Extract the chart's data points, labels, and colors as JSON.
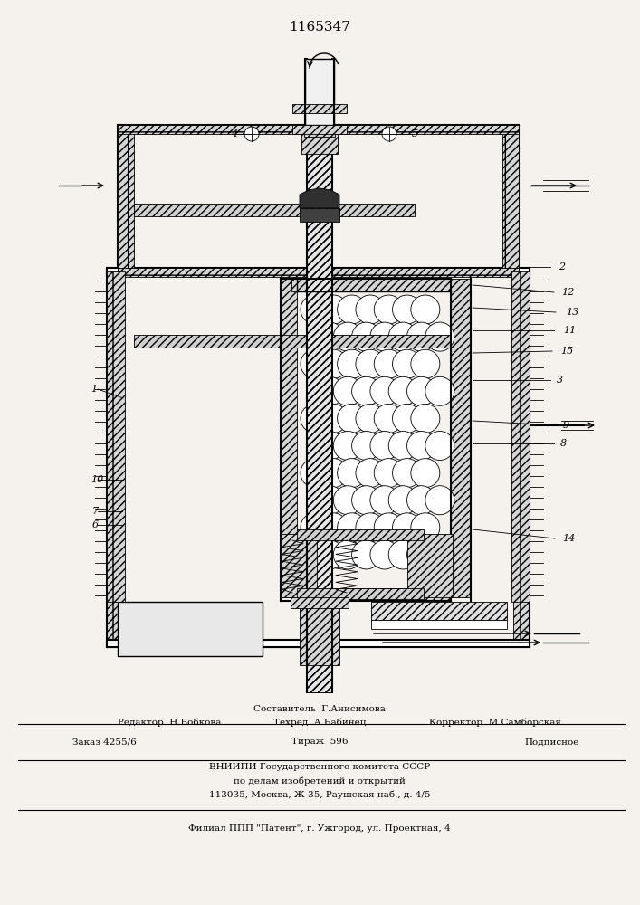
{
  "title": "1165347",
  "bg_color": "#f5f2ee",
  "footer": {
    "sestavitel": "Составитель  Г.Анисимова",
    "row1_left": "Редактор  Н.Бобкова",
    "row1_mid": "Техред  А.Бабинец",
    "row1_right": "Корректор  М.Самборская",
    "row2_left": "Заказ 4255/6",
    "row2_mid": "Тираж  596",
    "row2_right": "Подписное",
    "row3": "ВНИИПИ Государственного комитета СССР",
    "row4": "по делам изобретений и открытий",
    "row5": "113035, Москва, Ж-35, Раушская наб., д. 4/5",
    "row6": "Филиал ППП \"Патент\", г. Ужгород, ул. Проектная, 4"
  }
}
